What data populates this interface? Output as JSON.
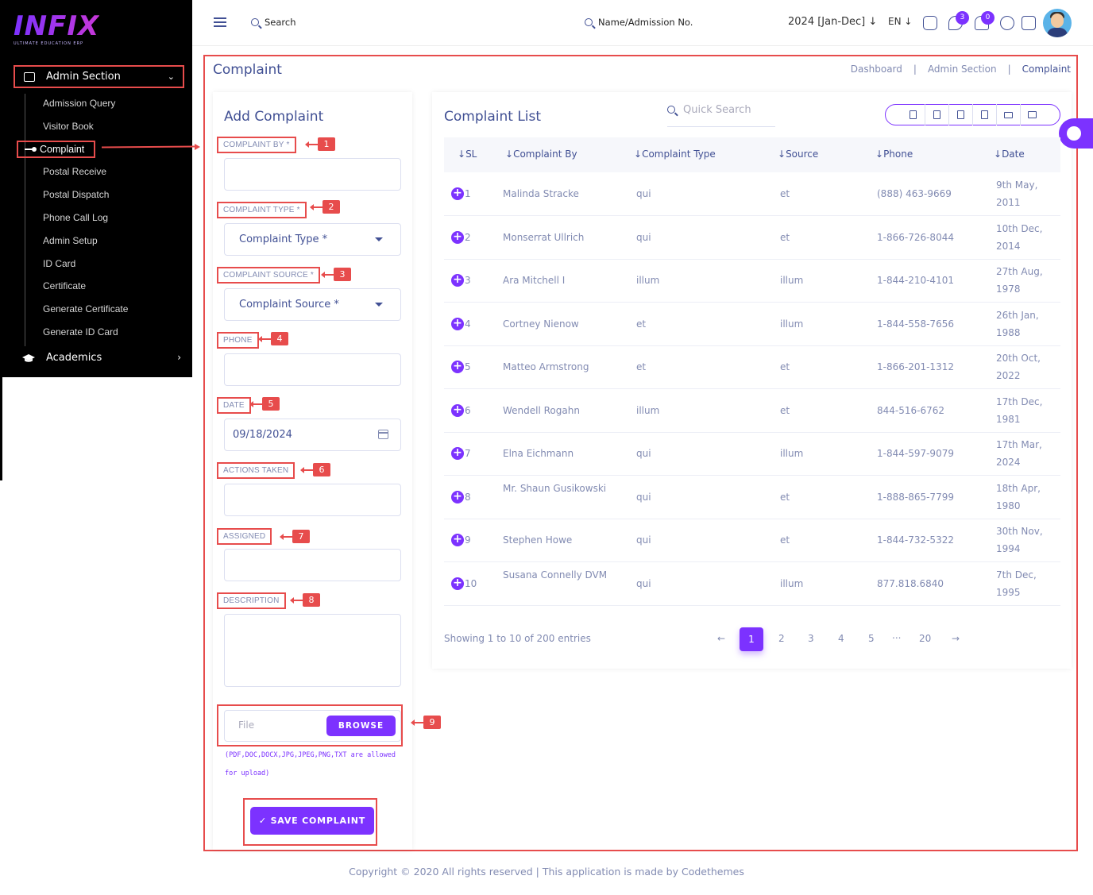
{
  "sidebar": {
    "logo": "INFIX",
    "logo_sub": "ULTIMATE EDUCATION ERP",
    "section_label": "Admin Section",
    "items": [
      {
        "label": "Admission Query"
      },
      {
        "label": "Visitor Book"
      },
      {
        "label": "Complaint"
      },
      {
        "label": "Postal Receive"
      },
      {
        "label": "Postal Dispatch"
      },
      {
        "label": "Phone Call Log"
      },
      {
        "label": "Admin Setup"
      },
      {
        "label": "ID Card"
      },
      {
        "label": "Certificate"
      },
      {
        "label": "Generate Certificate"
      },
      {
        "label": "Generate ID Card"
      }
    ],
    "academics_label": "Academics"
  },
  "topbar": {
    "search_label": "Search",
    "name_search_label": "Name/Admission No.",
    "year": "2024 [Jan-Dec]",
    "language": "EN",
    "chat_badge": "3",
    "notification_badge": "0"
  },
  "page": {
    "title": "Complaint",
    "breadcrumbs": [
      "Dashboard",
      "Admin Section",
      "Complaint"
    ]
  },
  "form": {
    "title": "Add Complaint",
    "complaint_by_label": "COMPLAINT BY *",
    "complaint_type_label": "COMPLAINT TYPE *",
    "complaint_type_placeholder": "Complaint Type *",
    "complaint_source_label": "COMPLAINT SOURCE *",
    "complaint_source_placeholder": "Complaint Source *",
    "phone_label": "PHONE",
    "date_label": "DATE",
    "date_value": "09/18/2024",
    "actions_taken_label": "ACTIONS TAKEN",
    "assigned_label": "ASSIGNED",
    "description_label": "DESCRIPTION",
    "file_placeholder": "File",
    "browse_label": "BROWSE",
    "allowed_text": "(PDF,DOC,DOCX,JPG,JPEG,PNG,TXT are allowed for upload)",
    "save_label": "✓ SAVE COMPLAINT"
  },
  "callouts": [
    "1",
    "2",
    "3",
    "4",
    "5",
    "6",
    "7",
    "8",
    "9"
  ],
  "list": {
    "title": "Complaint List",
    "quick_search_placeholder": "Quick Search",
    "columns": [
      "SL",
      "Complaint By",
      "Complaint Type",
      "Source",
      "Phone",
      "Date"
    ],
    "rows": [
      {
        "sl": "1",
        "by": "Malinda Stracke",
        "type": "qui",
        "source": "et",
        "phone": "(888) 463-9669",
        "date": "9th May, 2011"
      },
      {
        "sl": "2",
        "by": "Monserrat Ullrich",
        "type": "qui",
        "source": "et",
        "phone": "1-866-726-8044",
        "date": "10th Dec, 2014"
      },
      {
        "sl": "3",
        "by": "Ara Mitchell I",
        "type": "illum",
        "source": "illum",
        "phone": "1-844-210-4101",
        "date": "27th Aug, 1978"
      },
      {
        "sl": "4",
        "by": "Cortney Nienow",
        "type": "et",
        "source": "illum",
        "phone": "1-844-558-7656",
        "date": "26th Jan, 1988"
      },
      {
        "sl": "5",
        "by": "Matteo Armstrong",
        "type": "et",
        "source": "et",
        "phone": "1-866-201-1312",
        "date": "20th Oct, 2022"
      },
      {
        "sl": "6",
        "by": "Wendell Rogahn",
        "type": "illum",
        "source": "et",
        "phone": "844-516-6762",
        "date": "17th Dec, 1981"
      },
      {
        "sl": "7",
        "by": "Elna Eichmann",
        "type": "qui",
        "source": "illum",
        "phone": "1-844-597-9079",
        "date": "17th Mar, 2024"
      },
      {
        "sl": "8",
        "by": "Mr. Shaun Gusikowski",
        "type": "qui",
        "source": "et",
        "phone": "1-888-865-7799",
        "date": "18th Apr, 1980"
      },
      {
        "sl": "9",
        "by": "Stephen Howe",
        "type": "qui",
        "source": "et",
        "phone": "1-844-732-5322",
        "date": "30th Nov, 1994"
      },
      {
        "sl": "10",
        "by": "Susana Connelly DVM",
        "type": "qui",
        "source": "illum",
        "phone": "877.818.6840",
        "date": "7th Dec, 1995"
      }
    ],
    "showing": "Showing 1 to 10 of 200 entries",
    "pages": [
      "1",
      "2",
      "3",
      "4",
      "5",
      "...",
      "20"
    ],
    "prev_icon": "←",
    "next_icon": "→"
  },
  "footer": "Copyright © 2020 All rights reserved | This application is made by Codethemes",
  "colors": {
    "accent": "#7c32ff",
    "annotation": "#e74c4c",
    "text": "#415094",
    "muted": "#828bb2"
  }
}
